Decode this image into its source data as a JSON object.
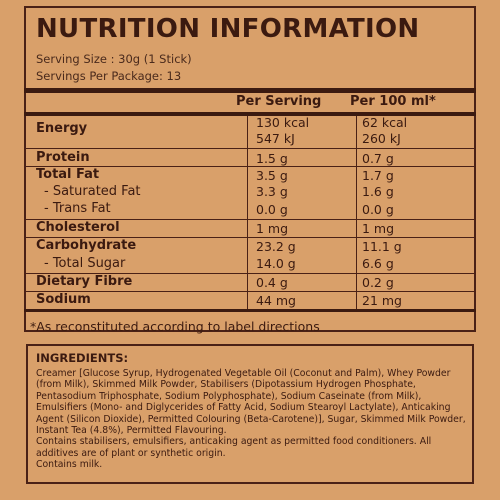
{
  "title": "NUTRITION INFORMATION",
  "serving_size": "Serving Size : 30g (1 Stick)",
  "servings_per_package": "Servings Per Package: 13",
  "columns": {
    "per_serving": "Per Serving",
    "per_100ml": "Per 100 ml*"
  },
  "rows": [
    {
      "label": "Energy",
      "per_serving": "130 kcal",
      "per_100ml": "62 kcal"
    },
    {
      "label": "",
      "per_serving": "547 kJ",
      "per_100ml": "260 kJ"
    },
    {
      "label": "Protein",
      "per_serving": "1.5 g",
      "per_100ml": "0.7 g"
    },
    {
      "label": "Total Fat",
      "per_serving": "3.5 g",
      "per_100ml": "1.7 g"
    },
    {
      "label": "- Saturated Fat",
      "per_serving": "3.3 g",
      "per_100ml": "1.6 g"
    },
    {
      "label": "- Trans Fat",
      "per_serving": "0.0 g",
      "per_100ml": "0.0 g"
    },
    {
      "label": "Cholesterol",
      "per_serving": "1 mg",
      "per_100ml": "1 mg"
    },
    {
      "label": "Carbohydrate",
      "per_serving": "23.2 g",
      "per_100ml": "11.1 g"
    },
    {
      "label": "- Total Sugar",
      "per_serving": "14.0 g",
      "per_100ml": "6.6 g"
    },
    {
      "label": "Dietary Fibre",
      "per_serving": "0.4 g",
      "per_100ml": "0.2 g"
    },
    {
      "label": "Sodium",
      "per_serving": "44 mg",
      "per_100ml": "21 mg"
    }
  ],
  "footnote": "*As reconstituted according to label directions",
  "ingredients": {
    "title": "INGREDIENTS:",
    "text": "Creamer [Glucose Syrup, Hydrogenated Vegetable Oil (Coconut and Palm), Whey Powder (from Milk), Skimmed Milk Powder, Stabilisers (Dipotassium Hydrogen Phosphate, Pentasodium Triphosphate, Sodium Polyphosphate), Sodium Caseinate (from Milk), Emulsifiers (Mono- and Diglycerides of Fatty Acid, Sodium Stearoyl Lactylate), Anticaking Agent (Silicon Dioxide), Permitted Colouring (Beta-Carotene)], Sugar, Skimmed Milk Powder, Instant Tea (4.8%), Permitted Flavouring.",
    "note": "Contains stabilisers, emulsifiers, anticaking agent as permitted food conditioners. All additives are of plant or synthetic origin.",
    "allergen": "Contains milk."
  }
}
